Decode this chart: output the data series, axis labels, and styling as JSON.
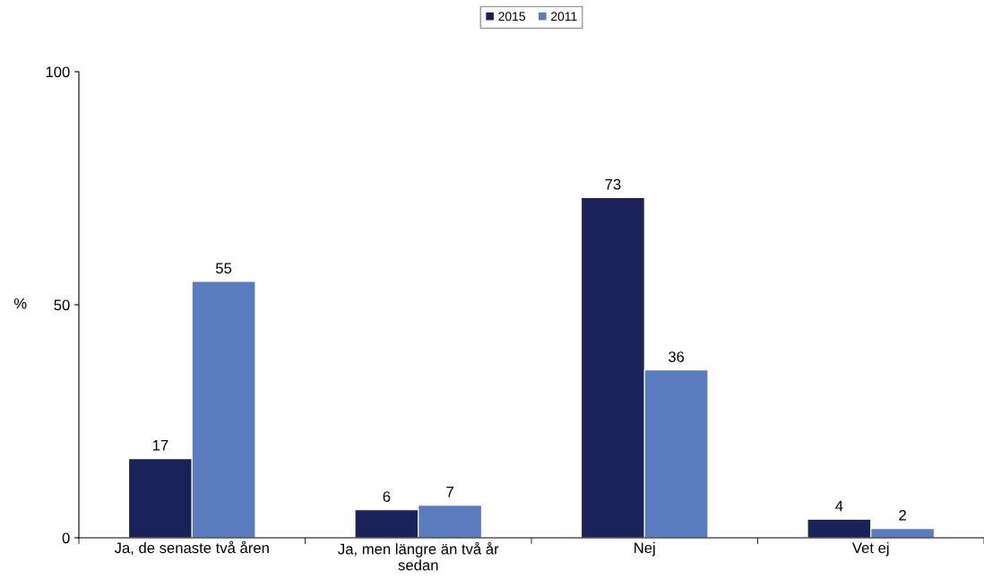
{
  "chart_data": {
    "type": "bar",
    "ylabel": "%",
    "categories": [
      "Ja, de senaste två åren",
      "Ja, men längre än två år\nsedan",
      "Nej",
      "Vet ej"
    ],
    "series": [
      {
        "name": "2015",
        "color": "#1b2259",
        "values": [
          17,
          6,
          73,
          4
        ]
      },
      {
        "name": "2011",
        "color": "#5b7bbf",
        "values": [
          55,
          7,
          36,
          2
        ]
      }
    ],
    "ylim": [
      0,
      100
    ],
    "yticks": [
      0,
      50,
      100
    ],
    "data_labels": true,
    "grid": false,
    "legend": "top"
  }
}
